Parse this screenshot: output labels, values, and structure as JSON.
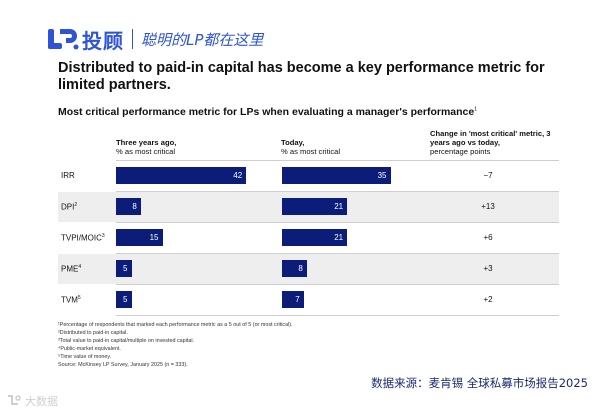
{
  "brand": {
    "name": "投顾",
    "slogan": "聪明的LP都在这里",
    "color": "#2f55d4"
  },
  "accent_color": "#0b1d78",
  "chart_data": {
    "type": "bar",
    "title": "Distributed to paid-in capital has become a key performance metric for limited partners.",
    "subtitle": "Most critical performance metric for LPs when evaluating a manager's performance",
    "subtitle_note": "1",
    "columns": {
      "three_years_ago": {
        "name": "Three years ago,",
        "sub": "% as most critical"
      },
      "today": {
        "name": "Today,",
        "sub": "% as most critical"
      },
      "change": {
        "name": "Change in 'most critical' metric, 3 years ago vs today,",
        "sub": "percentage points"
      }
    },
    "rows": [
      {
        "metric": "IRR",
        "note": "",
        "three_years_ago": 42,
        "today": 35,
        "change": "−7"
      },
      {
        "metric": "DPI",
        "note": "2",
        "three_years_ago": 8,
        "today": 21,
        "change": "+13"
      },
      {
        "metric": "TVPI/MOIC",
        "note": "3",
        "three_years_ago": 15,
        "today": 21,
        "change": "+6"
      },
      {
        "metric": "PME",
        "note": "4",
        "three_years_ago": 5,
        "today": 8,
        "change": "+3"
      },
      {
        "metric": "TVM",
        "note": "5",
        "three_years_ago": 5,
        "today": 7,
        "change": "+2"
      }
    ],
    "footnotes": [
      "¹Percentage of respondents that marked each performance metric as a 5 out of 5 (or most critical).",
      "²Distributed to paid-in capital.",
      "³Total value to paid-in capital/multiple on invested capital.",
      "⁴Public-market equivalent.",
      "⁵Time value of money.",
      "Source: McKinsey LP Survey, January 2025 (n = 333)."
    ]
  },
  "source_cn": "数据来源：麦肯锡 全球私募市场报告2025",
  "watermark": "大数据"
}
